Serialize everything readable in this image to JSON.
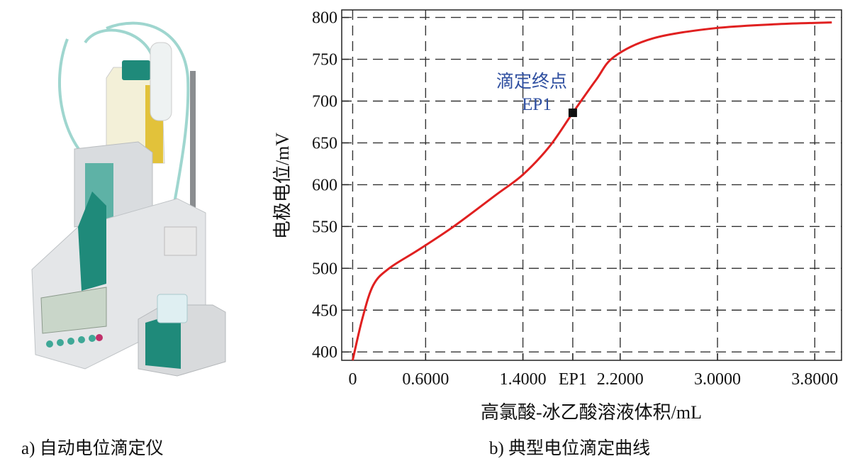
{
  "captions": {
    "left": "a) 自动电位滴定仪",
    "right": "b) 典型电位滴定曲线"
  },
  "chart_data": {
    "type": "line",
    "title": "",
    "xlabel": "高氯酸-冰乙酸溶液体积/mL",
    "ylabel": "电极电位/mV",
    "xlim": [
      -0.09,
      4.02
    ],
    "ylim": [
      390,
      809
    ],
    "grid": true,
    "grid_style": "dashed",
    "x_ticks": [
      {
        "value": 0,
        "label": "0"
      },
      {
        "value": 0.6,
        "label": "0.6000"
      },
      {
        "value": 1.4,
        "label": "1.4000"
      },
      {
        "value": 1.81,
        "label": "EP1"
      },
      {
        "value": 2.2,
        "label": "2.2000"
      },
      {
        "value": 3.0,
        "label": "3.0000"
      },
      {
        "value": 3.8,
        "label": "3.8000"
      }
    ],
    "y_ticks": [
      400,
      450,
      500,
      550,
      600,
      650,
      700,
      750,
      800
    ],
    "series": [
      {
        "color": "#e02020",
        "x": [
          0,
          0.08,
          0.17,
          0.3,
          0.54,
          0.83,
          1.18,
          1.4,
          1.62,
          1.81,
          2.0,
          2.15,
          2.47,
          2.97,
          3.5,
          3.94
        ],
        "y": [
          390,
          440,
          480,
          500,
          522,
          550,
          588,
          612,
          646,
          686,
          725,
          753,
          775,
          787,
          792,
          794
        ]
      }
    ],
    "annotations": [
      {
        "text_line1": "滴定终点",
        "text_line2": "EP1",
        "x": 1.81,
        "y": 686,
        "color": "#2f4fa0",
        "marker": "black-square"
      }
    ]
  },
  "photo": {
    "subject": "automatic-potentiometric-titrator",
    "accent": "#1f8a7a"
  }
}
